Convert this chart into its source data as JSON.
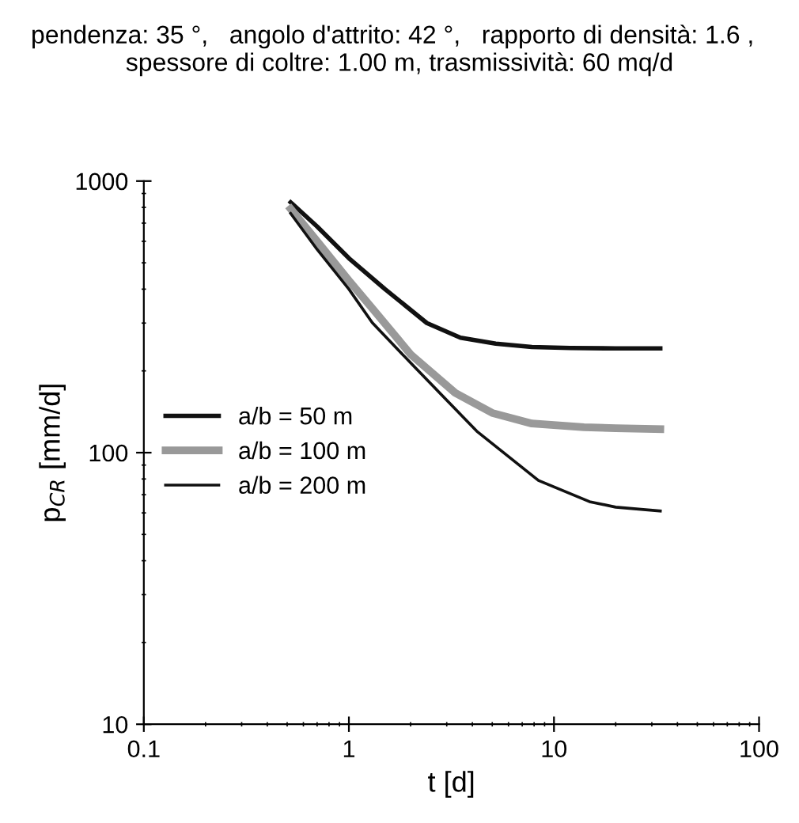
{
  "chart_data": {
    "type": "line",
    "title": "pendenza: 35 °,   angolo d'attrito: 42 °,   rapporto di densità: 1.6 ,   spessore di coltre: 1.00 m, trasmissività: 60 mq/d",
    "xlabel": "t [d]",
    "ylabel": "p$_{CR}$ [mm/d]",
    "series": [
      {
        "name": "a/b = 50 m",
        "color": "#111111",
        "x": [
          0.52,
          0.7,
          1,
          1.5,
          2.4,
          3.5,
          5.2,
          7.8,
          12,
          20,
          33
        ],
        "values": [
          835,
          680,
          520,
          400,
          300,
          265,
          252,
          245,
          243,
          242,
          242
        ]
      },
      {
        "name": "a/b = 100 m",
        "color": "#999999",
        "x": [
          0.52,
          0.7,
          1,
          1.3,
          2,
          3.3,
          5,
          7.8,
          14,
          20,
          33
        ],
        "values": [
          790,
          600,
          430,
          340,
          230,
          166,
          140,
          128,
          124,
          123,
          122
        ]
      },
      {
        "name": "a/b = 200 m",
        "color": "#111111",
        "x": [
          0.52,
          0.7,
          1,
          1.3,
          2,
          4.2,
          8.4,
          14.9,
          20,
          33
        ],
        "values": [
          760,
          560,
          400,
          301,
          214,
          120,
          79,
          66,
          63,
          61
        ]
      }
    ],
    "xlim": [
      0.1,
      100
    ],
    "ylim": [
      10,
      1000
    ],
    "xticks": [
      0.1,
      1,
      10,
      100
    ],
    "yticks": [
      10,
      100,
      1000
    ],
    "log": "xy",
    "grid": false,
    "legend": "center left",
    "marker": "none",
    "line_style": "solid"
  }
}
